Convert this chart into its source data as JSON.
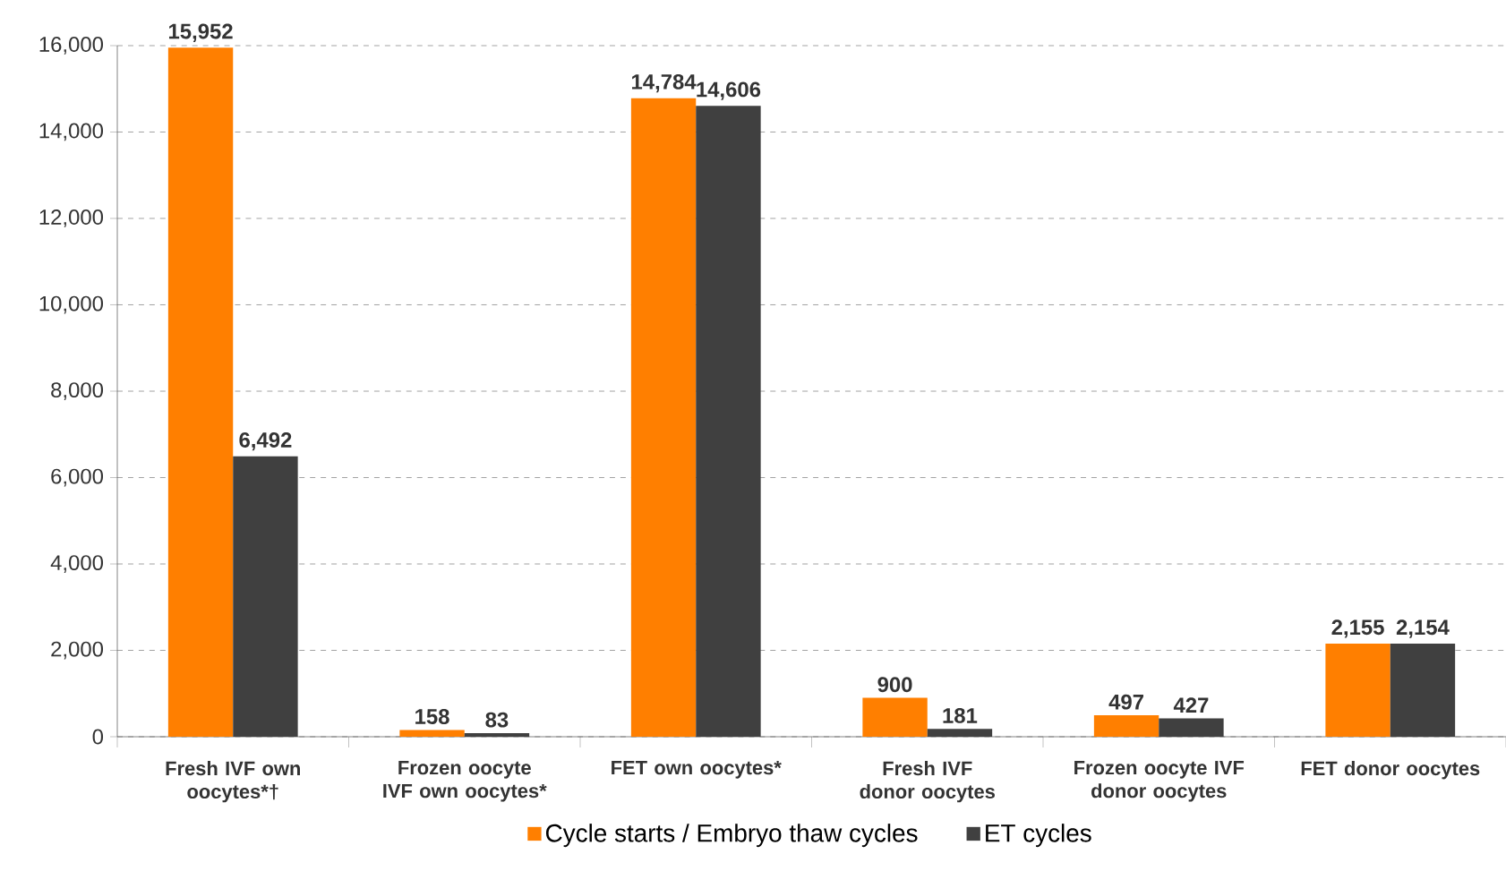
{
  "chart_data": {
    "type": "bar",
    "categories": [
      "Fresh IVF own oocytes*†",
      "Frozen oocyte IVF own oocytes*",
      "FET own oocytes*",
      "Fresh IVF donor oocytes",
      "Frozen oocyte IVF donor oocytes",
      "FET donor oocytes"
    ],
    "series": [
      {
        "name": "Cycle starts / Embryo thaw cycles",
        "color": "#ff7f00",
        "values": [
          15952,
          158,
          14784,
          900,
          497,
          2155
        ],
        "value_labels": [
          "15,952",
          "158",
          "14,784",
          "900",
          "497",
          "2,155"
        ]
      },
      {
        "name": "ET cycles",
        "color": "#404040",
        "values": [
          6492,
          83,
          14606,
          181,
          427,
          2154
        ],
        "value_labels": [
          "6,492",
          "83",
          "14,606",
          "181",
          "427",
          "2,154"
        ]
      }
    ],
    "ylim": [
      0,
      16000
    ],
    "yticks": [
      {
        "value": 0,
        "label": "0"
      },
      {
        "value": 2000,
        "label": "2,000"
      },
      {
        "value": 4000,
        "label": "4,000"
      },
      {
        "value": 6000,
        "label": "6,000"
      },
      {
        "value": 8000,
        "label": "8,000"
      },
      {
        "value": 10000,
        "label": "10,000"
      },
      {
        "value": 12000,
        "label": "12,000"
      },
      {
        "value": 14000,
        "label": "14,000"
      },
      {
        "value": 16000,
        "label": "16,000"
      }
    ],
    "grid": "y",
    "legend": "bottom"
  }
}
